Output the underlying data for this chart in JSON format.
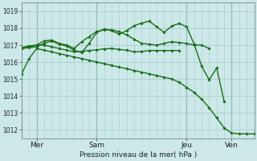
{
  "background_color": "#cce8e8",
  "grid_color": "#aacccc",
  "line_color": "#1a6e1a",
  "marker_color": "#1a6e1a",
  "xlabel": "Pression niveau de la mer( hPa )",
  "ylim": [
    1011.5,
    1019.5
  ],
  "yticks": [
    1012,
    1013,
    1014,
    1015,
    1016,
    1017,
    1018,
    1019
  ],
  "xtick_labels": [
    "Mer",
    "Sam",
    "Jeu",
    "Ven"
  ],
  "xtick_positions": [
    2,
    10,
    22,
    28
  ],
  "vlines": [
    2,
    10,
    22,
    28
  ],
  "series": [
    [
      1015.3,
      1016.2,
      1016.8,
      1016.7,
      1016.6,
      1016.5,
      1016.4,
      1016.3,
      1016.2,
      1016.1,
      1016.0,
      1015.9,
      1015.8,
      1015.7,
      1015.6,
      1015.5,
      1015.4,
      1015.3,
      1015.2,
      1015.1,
      1015.0,
      1014.8,
      1014.5,
      1014.2,
      1013.8,
      1013.3,
      1012.7,
      1012.1,
      1011.8,
      1011.75,
      1011.75,
      1011.75
    ],
    [
      1016.8,
      1016.9,
      1017.0,
      1017.25,
      1017.3,
      1017.1,
      1017.0,
      1016.8,
      1017.2,
      1017.5,
      1017.8,
      1017.9,
      1017.9,
      1017.8,
      1017.6,
      1017.35,
      1017.1,
      1017.05,
      1017.0,
      1017.1,
      1017.2,
      1017.15,
      1017.1,
      1017.0,
      1017.0,
      1016.8,
      null,
      null,
      null,
      null,
      null,
      null
    ],
    [
      1016.8,
      1016.85,
      1016.9,
      1017.1,
      1017.25,
      1017.05,
      1016.95,
      1016.7,
      1016.55,
      1017.1,
      1017.75,
      1017.95,
      1017.85,
      1017.65,
      1017.85,
      1018.15,
      1018.3,
      1018.42,
      1018.08,
      1017.75,
      1018.12,
      1018.28,
      1018.08,
      1017.05,
      1015.75,
      1014.95,
      1015.65,
      1013.65,
      null,
      null,
      null,
      null
    ],
    [
      1016.85,
      1016.95,
      1017.0,
      1017.0,
      1016.9,
      1016.8,
      1016.7,
      1016.6,
      1016.62,
      1016.68,
      1016.72,
      1016.78,
      1016.8,
      1016.74,
      1016.7,
      1016.6,
      1016.62,
      1016.68,
      1016.68,
      1016.68,
      1016.68,
      1016.68,
      null,
      null,
      null,
      null,
      null,
      null,
      null,
      null,
      null,
      null
    ]
  ]
}
